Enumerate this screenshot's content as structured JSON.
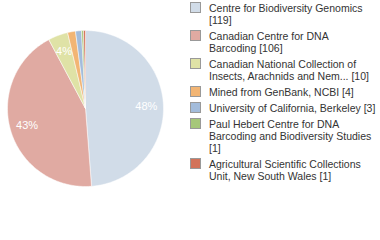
{
  "chart_data": {
    "type": "pie",
    "categories": [
      "Centre for Biodiversity Genomics [119]",
      "Canadian Centre for DNA Barcoding [106]",
      "Canadian National Collection of Insects, Arachnids and Nem... [10]",
      "Mined from GenBank, NCBI [4]",
      "University of California, Berkeley [3]",
      "Paul Hebert Centre for DNA Barcoding and Biodiversity Studies [1]",
      "Agricultural Scientific Collections Unit, New South Wales [1]"
    ],
    "values": [
      119,
      106,
      10,
      4,
      3,
      1,
      1
    ],
    "colors": [
      "#d1dce8",
      "#e0aaa2",
      "#dfe2a6",
      "#f2b574",
      "#a3bcdb",
      "#a6c77a",
      "#d2735a"
    ],
    "percent_labels": [
      "48%",
      "43%",
      "4%",
      null,
      null,
      null,
      null
    ],
    "legend": "right"
  }
}
